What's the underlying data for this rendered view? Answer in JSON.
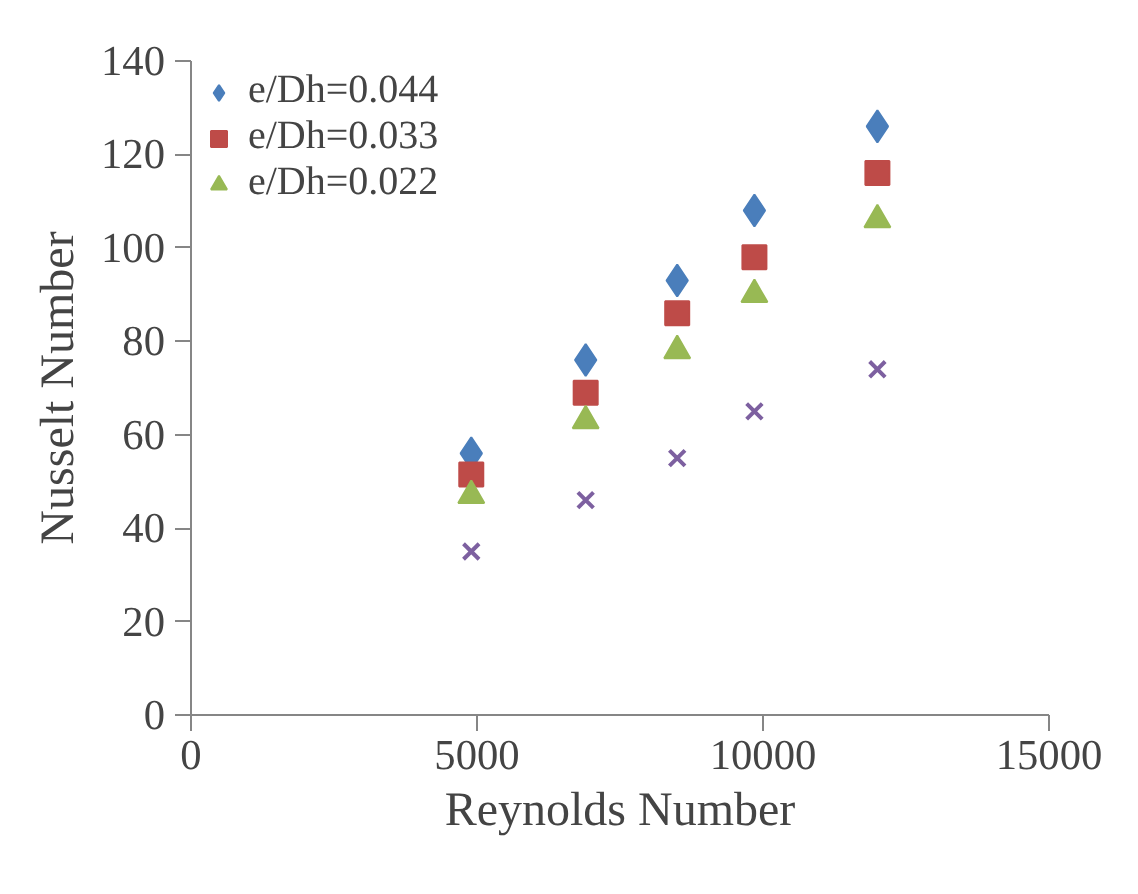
{
  "chart_data": {
    "type": "scatter",
    "xlabel": "Reynolds Number",
    "ylabel": "Nusselt Number",
    "x": [
      4900,
      6900,
      8500,
      9850,
      12000
    ],
    "series": [
      {
        "name": "e/Dh=0.044",
        "color": "#4a7ebb",
        "marker": "diamond",
        "values": [
          56,
          76,
          93,
          108,
          126
        ]
      },
      {
        "name": "e/Dh=0.033",
        "color": "#be4b48",
        "marker": "square",
        "values": [
          51.5,
          69,
          86,
          98,
          116
        ]
      },
      {
        "name": "e/Dh=0.022",
        "color": "#98b954",
        "marker": "triangle",
        "values": [
          47,
          63,
          78,
          90,
          106
        ]
      },
      {
        "color": "#7d60a0",
        "marker": "cross",
        "values": [
          35,
          46,
          55,
          65,
          74
        ]
      }
    ],
    "xlim": [
      0,
      15000
    ],
    "xticks": [
      0,
      5000,
      10000,
      15000
    ],
    "ylim": [
      0,
      140
    ],
    "yticks": [
      0,
      20,
      40,
      60,
      80,
      100,
      120,
      140
    ],
    "grid": false,
    "legend": "top left"
  }
}
